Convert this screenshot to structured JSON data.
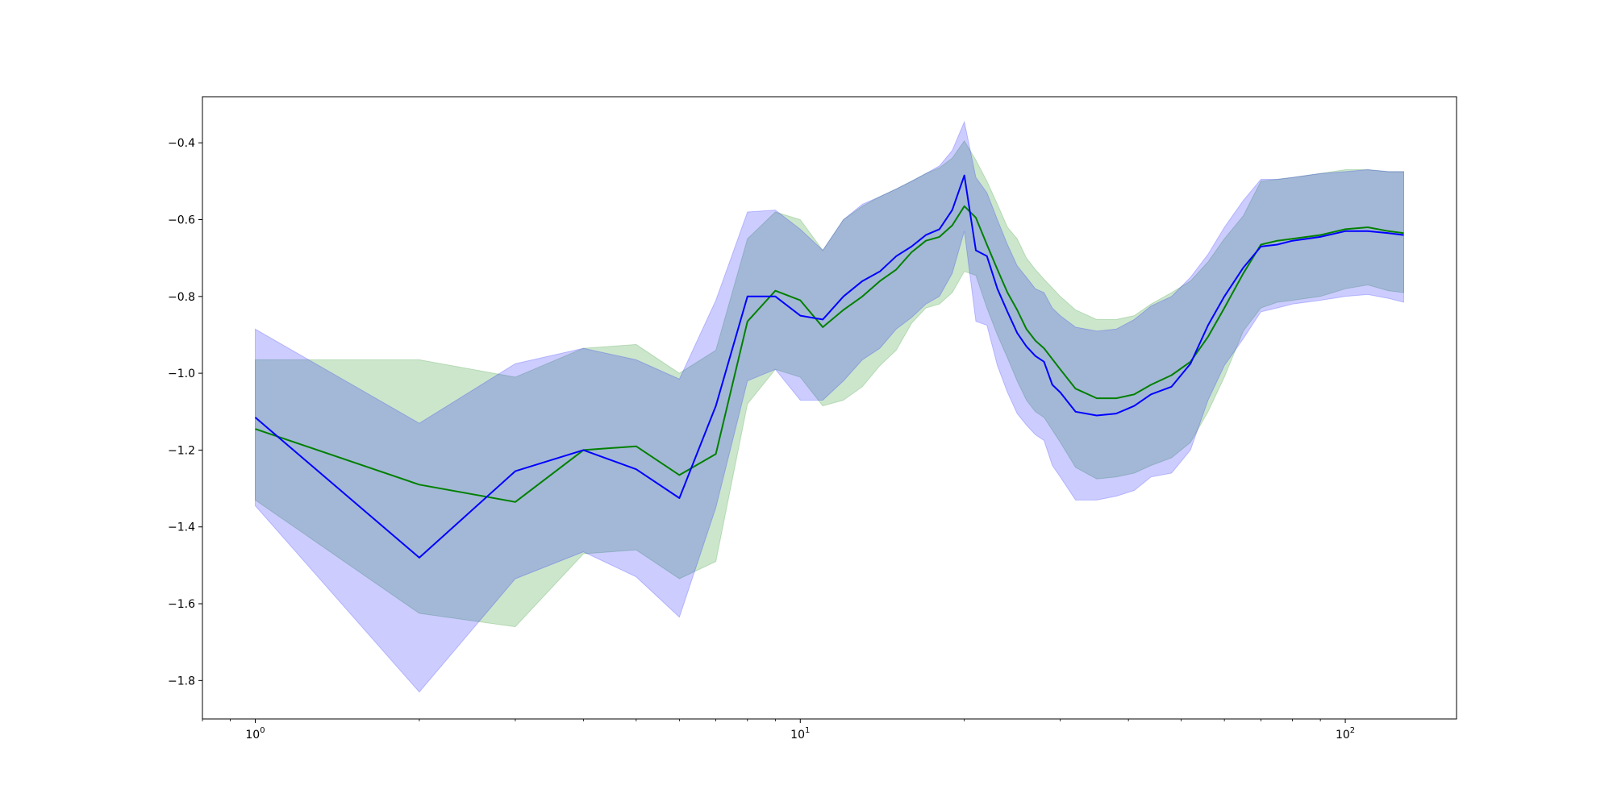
{
  "chart_data": {
    "type": "line",
    "title": "",
    "xlabel": "",
    "ylabel": "",
    "x_scale": "log",
    "xlim": [
      0.8,
      160
    ],
    "ylim": [
      -1.9,
      -0.28
    ],
    "grid": false,
    "x_ticks": [
      {
        "value": 1,
        "label": "10",
        "exp": "0"
      },
      {
        "value": 10,
        "label": "10",
        "exp": "1"
      },
      {
        "value": 100,
        "label": "10",
        "exp": "2"
      }
    ],
    "y_ticks": [
      {
        "value": -0.4,
        "label": "−0.4"
      },
      {
        "value": -0.6,
        "label": "−0.6"
      },
      {
        "value": -0.8,
        "label": "−0.8"
      },
      {
        "value": -1.0,
        "label": "−1.0"
      },
      {
        "value": -1.2,
        "label": "−1.2"
      },
      {
        "value": -1.4,
        "label": "−1.4"
      },
      {
        "value": -1.6,
        "label": "−1.6"
      },
      {
        "value": -1.8,
        "label": "−1.8"
      }
    ],
    "series": [
      {
        "color": "#008000",
        "band_color": "#008000",
        "band_opacity": 0.2,
        "points": [
          [
            1,
            -1.145,
            -0.965,
            -1.33
          ],
          [
            2,
            -1.29,
            -0.965,
            -1.625
          ],
          [
            3,
            -1.335,
            -1.01,
            -1.66
          ],
          [
            4,
            -1.2,
            -0.935,
            -1.47
          ],
          [
            5,
            -1.19,
            -0.925,
            -1.46
          ],
          [
            6,
            -1.265,
            -1.0,
            -1.535
          ],
          [
            7,
            -1.21,
            -0.94,
            -1.49
          ],
          [
            8,
            -0.865,
            -0.65,
            -1.08
          ],
          [
            9,
            -0.785,
            -0.58,
            -0.99
          ],
          [
            10,
            -0.81,
            -0.6,
            -1.01
          ],
          [
            11,
            -0.88,
            -0.68,
            -1.085
          ],
          [
            12,
            -0.835,
            -0.6,
            -1.07
          ],
          [
            13,
            -0.8,
            -0.565,
            -1.035
          ],
          [
            14,
            -0.76,
            -0.54,
            -0.98
          ],
          [
            15,
            -0.73,
            -0.52,
            -0.94
          ],
          [
            16,
            -0.685,
            -0.5,
            -0.87
          ],
          [
            17,
            -0.655,
            -0.48,
            -0.83
          ],
          [
            18,
            -0.645,
            -0.465,
            -0.82
          ],
          [
            19,
            -0.615,
            -0.44,
            -0.79
          ],
          [
            20,
            -0.565,
            -0.395,
            -0.735
          ],
          [
            21,
            -0.595,
            -0.445,
            -0.745
          ],
          [
            22,
            -0.665,
            -0.5,
            -0.83
          ],
          [
            23,
            -0.73,
            -0.56,
            -0.9
          ],
          [
            24,
            -0.79,
            -0.62,
            -0.96
          ],
          [
            25,
            -0.835,
            -0.65,
            -1.02
          ],
          [
            26,
            -0.885,
            -0.7,
            -1.07
          ],
          [
            27,
            -0.915,
            -0.73,
            -1.1
          ],
          [
            28,
            -0.935,
            -0.755,
            -1.115
          ],
          [
            30,
            -0.99,
            -0.8,
            -1.18
          ],
          [
            32,
            -1.04,
            -0.835,
            -1.245
          ],
          [
            35,
            -1.065,
            -0.86,
            -1.275
          ],
          [
            38,
            -1.065,
            -0.86,
            -1.27
          ],
          [
            41,
            -1.055,
            -0.85,
            -1.26
          ],
          [
            44,
            -1.03,
            -0.82,
            -1.24
          ],
          [
            48,
            -1.005,
            -0.79,
            -1.22
          ],
          [
            52,
            -0.97,
            -0.76,
            -1.18
          ],
          [
            56,
            -0.905,
            -0.71,
            -1.1
          ],
          [
            60,
            -0.83,
            -0.65,
            -1.01
          ],
          [
            65,
            -0.74,
            -0.59,
            -0.89
          ],
          [
            70,
            -0.665,
            -0.5,
            -0.83
          ],
          [
            75,
            -0.655,
            -0.495,
            -0.815
          ],
          [
            80,
            -0.65,
            -0.49,
            -0.81
          ],
          [
            90,
            -0.64,
            -0.48,
            -0.8
          ],
          [
            100,
            -0.625,
            -0.47,
            -0.78
          ],
          [
            110,
            -0.62,
            -0.47,
            -0.77
          ],
          [
            120,
            -0.63,
            -0.475,
            -0.785
          ],
          [
            128,
            -0.635,
            -0.475,
            -0.79
          ]
        ]
      },
      {
        "color": "#0000ff",
        "band_color": "#0000ff",
        "band_opacity": 0.2,
        "points": [
          [
            1,
            -1.115,
            -0.885,
            -1.345
          ],
          [
            2,
            -1.48,
            -1.13,
            -1.83
          ],
          [
            3,
            -1.255,
            -0.975,
            -1.535
          ],
          [
            4,
            -1.2,
            -0.935,
            -1.465
          ],
          [
            5,
            -1.25,
            -0.965,
            -1.53
          ],
          [
            6,
            -1.325,
            -1.015,
            -1.635
          ],
          [
            7,
            -1.085,
            -0.81,
            -1.35
          ],
          [
            8,
            -0.8,
            -0.58,
            -1.02
          ],
          [
            9,
            -0.8,
            -0.575,
            -0.99
          ],
          [
            10,
            -0.85,
            -0.625,
            -1.07
          ],
          [
            11,
            -0.86,
            -0.68,
            -1.07
          ],
          [
            12,
            -0.8,
            -0.6,
            -1.02
          ],
          [
            13,
            -0.76,
            -0.56,
            -0.965
          ],
          [
            14,
            -0.735,
            -0.54,
            -0.935
          ],
          [
            15,
            -0.695,
            -0.52,
            -0.885
          ],
          [
            16,
            -0.67,
            -0.5,
            -0.855
          ],
          [
            17,
            -0.64,
            -0.48,
            -0.82
          ],
          [
            18,
            -0.625,
            -0.46,
            -0.8
          ],
          [
            19,
            -0.575,
            -0.42,
            -0.74
          ],
          [
            20,
            -0.485,
            -0.345,
            -0.63
          ],
          [
            21,
            -0.68,
            -0.49,
            -0.865
          ],
          [
            22,
            -0.695,
            -0.53,
            -0.875
          ],
          [
            23,
            -0.78,
            -0.6,
            -0.98
          ],
          [
            24,
            -0.84,
            -0.665,
            -1.05
          ],
          [
            25,
            -0.895,
            -0.72,
            -1.105
          ],
          [
            26,
            -0.93,
            -0.75,
            -1.135
          ],
          [
            27,
            -0.955,
            -0.78,
            -1.16
          ],
          [
            28,
            -0.97,
            -0.79,
            -1.175
          ],
          [
            29,
            -1.03,
            -0.83,
            -1.24
          ],
          [
            30,
            -1.05,
            -0.85,
            -1.27
          ],
          [
            32,
            -1.1,
            -0.88,
            -1.33
          ],
          [
            35,
            -1.11,
            -0.89,
            -1.33
          ],
          [
            38,
            -1.105,
            -0.885,
            -1.32
          ],
          [
            41,
            -1.085,
            -0.86,
            -1.305
          ],
          [
            44,
            -1.055,
            -0.825,
            -1.27
          ],
          [
            48,
            -1.035,
            -0.8,
            -1.26
          ],
          [
            52,
            -0.975,
            -0.75,
            -1.2
          ],
          [
            56,
            -0.875,
            -0.69,
            -1.07
          ],
          [
            60,
            -0.8,
            -0.62,
            -0.98
          ],
          [
            65,
            -0.725,
            -0.55,
            -0.91
          ],
          [
            70,
            -0.67,
            -0.495,
            -0.84
          ],
          [
            75,
            -0.665,
            -0.495,
            -0.83
          ],
          [
            80,
            -0.655,
            -0.49,
            -0.82
          ],
          [
            90,
            -0.645,
            -0.48,
            -0.81
          ],
          [
            100,
            -0.63,
            -0.475,
            -0.8
          ],
          [
            110,
            -0.63,
            -0.47,
            -0.795
          ],
          [
            120,
            -0.635,
            -0.475,
            -0.805
          ],
          [
            128,
            -0.64,
            -0.475,
            -0.815
          ]
        ]
      }
    ]
  }
}
